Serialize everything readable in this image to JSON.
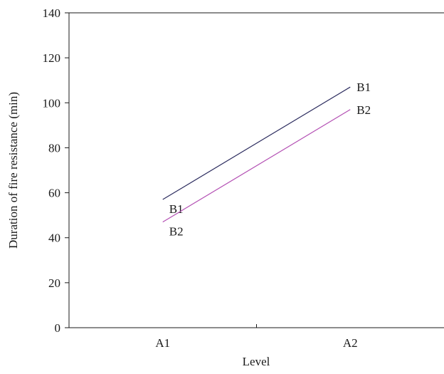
{
  "chart_data": {
    "type": "line",
    "title": "",
    "xlabel": "Level",
    "ylabel": "Duration of fire resistance (min)",
    "categories": [
      "A1",
      "A2"
    ],
    "ylim": [
      0,
      140
    ],
    "yticks": [
      0,
      20,
      40,
      60,
      80,
      100,
      120,
      140
    ],
    "grid": false,
    "legend": "none",
    "series": [
      {
        "name": "B1",
        "values": [
          57,
          107
        ],
        "color": "#2b2b5e"
      },
      {
        "name": "B2",
        "values": [
          47,
          97
        ],
        "color": "#b34fb3"
      }
    ]
  }
}
